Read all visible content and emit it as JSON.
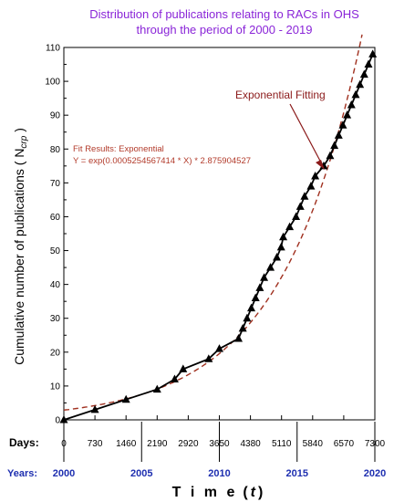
{
  "chart_data": {
    "type": "line",
    "title_lines": [
      "Distribution of publications relating to RACs in OHS",
      "through the period of 2000 - 2019"
    ],
    "ylabel": "Cumulative number of publications ( N",
    "ylabel_sub": "crp",
    "ylabel_end": " )",
    "xlabel": "T i m e",
    "xlabel_var": "t",
    "ylim": [
      0,
      110
    ],
    "xlim": [
      0,
      7300
    ],
    "yticks": [
      "0",
      "10",
      "20",
      "30",
      "40",
      "50",
      "60",
      "70",
      "80",
      "90",
      "100",
      "110"
    ],
    "days_label": "Days:",
    "years_label": "Years:",
    "day_ticks": [
      "0",
      "730",
      "1460",
      "2190",
      "2920",
      "3650",
      "4380",
      "5110",
      "5840",
      "6570",
      "7300"
    ],
    "year_ticks": [
      "2000",
      "2005",
      "2010",
      "2015",
      "2020"
    ],
    "annotation": "Exponential Fitting",
    "fit_results_title": "Fit Results: Exponential",
    "fit_equation": "Y = exp(0.0005254567414 * X) * 2.875904527",
    "fit_params": {
      "a": 0.0005254567414,
      "b": 2.875904527
    },
    "series": [
      {
        "x": [
          0,
          730,
          1460,
          2190,
          2600,
          2800,
          3400,
          3650,
          4100,
          4200,
          4300,
          4400,
          4500,
          4600,
          4700,
          4850,
          5000,
          5100,
          5150,
          5300,
          5450,
          5550,
          5650,
          5800,
          5900,
          6100,
          6250,
          6350,
          6450,
          6550,
          6650,
          6750,
          6850,
          6950,
          7050,
          7150,
          7250
        ],
        "y": [
          0,
          3,
          6,
          9,
          12,
          15,
          18,
          21,
          24,
          27,
          30,
          33,
          36,
          39,
          42,
          45,
          48,
          51,
          54,
          57,
          60,
          63,
          66,
          69,
          72,
          75,
          78,
          81,
          84,
          87,
          90,
          93,
          96,
          99,
          102,
          105,
          108
        ]
      }
    ],
    "colors": {
      "data": "#000000",
      "fit": "#a0301f",
      "title": "#8a25d8",
      "years": "#1e2fb0",
      "annotation": "#8b1a1a"
    }
  }
}
